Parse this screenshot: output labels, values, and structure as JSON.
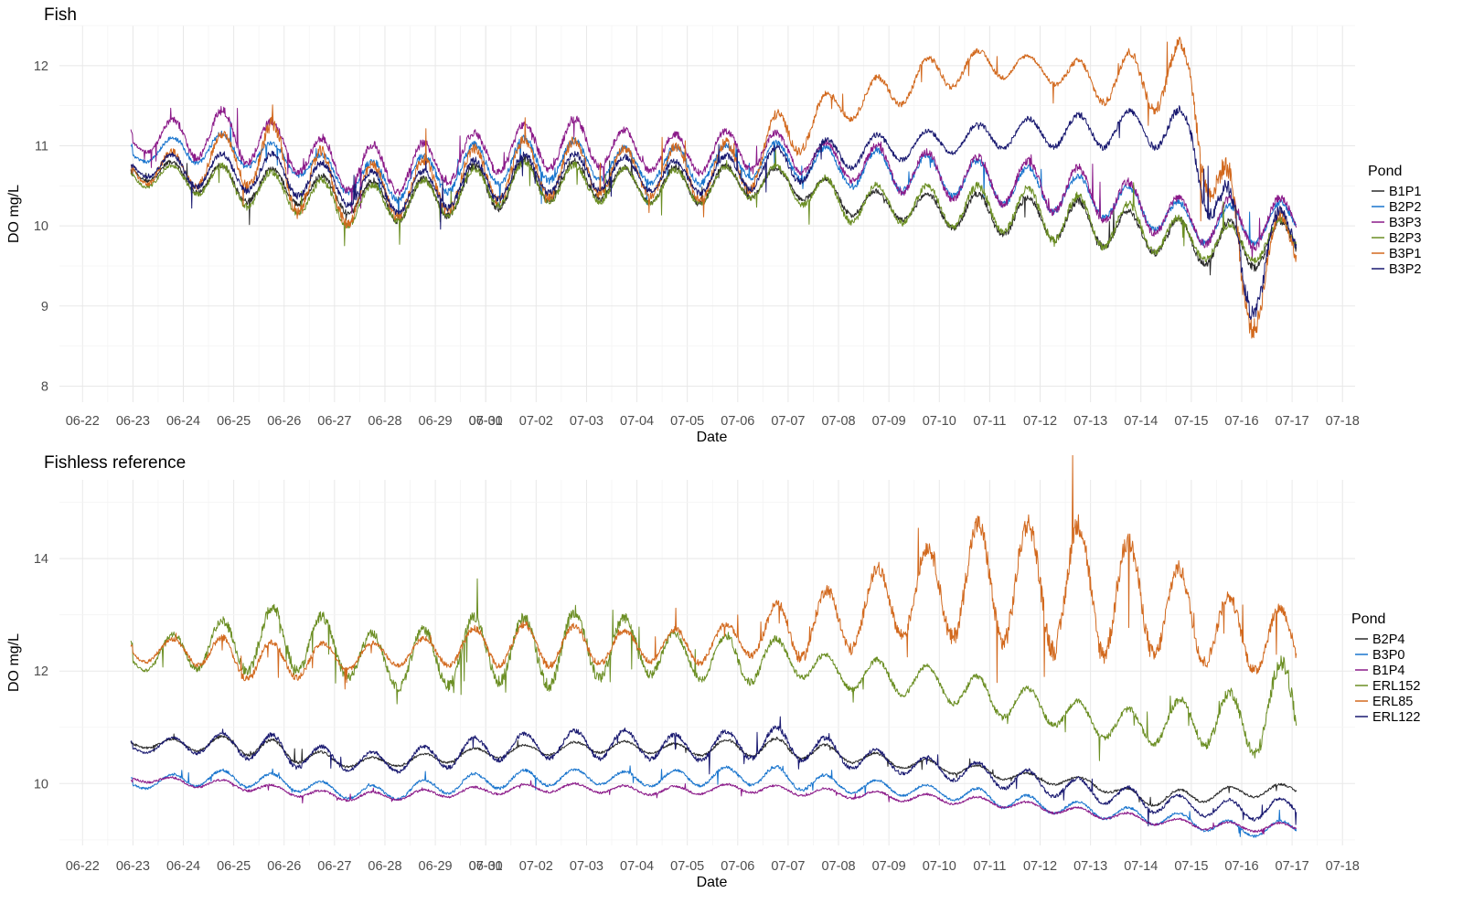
{
  "chart_data": [
    {
      "type": "line",
      "title": "Fish",
      "xlabel": "Date",
      "ylabel": "DO mg/L",
      "x_ticks": [
        "06-22",
        "06-23",
        "06-24",
        "06-25",
        "06-26",
        "06-27",
        "06-28",
        "06-29",
        "06-30",
        "07-01",
        "07-02",
        "07-03",
        "07-04",
        "07-05",
        "07-06",
        "07-07",
        "07-08",
        "07-09",
        "07-10",
        "07-11",
        "07-12",
        "07-13",
        "07-14",
        "07-15",
        "07-16",
        "07-17",
        "07-18"
      ],
      "xlim": [
        "06-21T13:00",
        "07-18T06:00"
      ],
      "ylim": [
        7.8,
        12.5
      ],
      "y_ticks": [
        8,
        9,
        10,
        11,
        12
      ],
      "grid": true,
      "legend": {
        "title": "Pond",
        "position": "right"
      },
      "x_start": "06-22T23:00",
      "x_end": "07-17T02:00",
      "series": [
        {
          "name": "B1P1",
          "color": "#2b2b2b",
          "daily_min": [
            10.6,
            10.45,
            10.3,
            10.3,
            10.2,
            10.05,
            10.1,
            10.2,
            10.3,
            10.35,
            10.3,
            10.25,
            10.35,
            10.4,
            10.15,
            10.1,
            10.0,
            9.9,
            9.85,
            9.75,
            9.7,
            9.55,
            9.45,
            9.55,
            9.65,
            9.8
          ],
          "daily_max": [
            10.8,
            10.8,
            10.75,
            10.7,
            10.6,
            10.55,
            10.6,
            10.8,
            10.85,
            10.8,
            10.7,
            10.75,
            10.75,
            10.7,
            10.55,
            10.4,
            10.4,
            10.4,
            10.35,
            10.3,
            10.15,
            10.05,
            10.05,
            10.05,
            10.2,
            10.1
          ]
        },
        {
          "name": "B2P2",
          "color": "#1874cd",
          "daily_min": [
            10.8,
            10.8,
            10.75,
            10.7,
            10.45,
            10.3,
            10.4,
            10.5,
            10.55,
            10.6,
            10.55,
            10.5,
            10.6,
            10.6,
            10.5,
            10.45,
            10.4,
            10.3,
            10.2,
            10.15,
            10.0,
            9.8,
            9.75,
            9.85,
            9.95,
            10.0
          ],
          "daily_max": [
            10.95,
            11.15,
            11.15,
            11.0,
            10.85,
            10.8,
            10.9,
            11.05,
            11.1,
            11.05,
            10.95,
            11.0,
            11.0,
            11.05,
            10.95,
            10.95,
            10.85,
            10.8,
            10.7,
            10.6,
            10.45,
            10.25,
            10.25,
            10.3,
            10.3,
            10.2
          ]
        },
        {
          "name": "B3P3",
          "color": "#8b1a89",
          "daily_min": [
            10.95,
            10.85,
            10.8,
            10.75,
            10.45,
            10.4,
            10.5,
            10.65,
            10.7,
            10.75,
            10.7,
            10.65,
            10.7,
            10.7,
            10.6,
            10.45,
            10.35,
            10.3,
            10.2,
            10.1,
            9.95,
            9.8,
            9.7,
            9.85,
            9.95,
            10.05
          ],
          "daily_max": [
            11.1,
            11.4,
            11.45,
            11.25,
            11.05,
            11.0,
            11.05,
            11.2,
            11.3,
            11.35,
            11.15,
            11.15,
            11.2,
            11.15,
            11.0,
            11.0,
            10.9,
            10.85,
            10.8,
            10.7,
            10.5,
            10.3,
            10.35,
            10.35,
            10.45,
            10.3
          ]
        },
        {
          "name": "B2P3",
          "color": "#6b8e23",
          "daily_min": [
            10.5,
            10.45,
            10.25,
            10.2,
            10.0,
            10.05,
            10.1,
            10.25,
            10.3,
            10.3,
            10.3,
            10.25,
            10.35,
            10.35,
            10.05,
            10.05,
            10.0,
            9.95,
            9.85,
            9.75,
            9.7,
            9.6,
            9.55,
            9.6,
            9.75,
            9.85
          ],
          "daily_max": [
            10.75,
            10.75,
            10.75,
            10.65,
            10.55,
            10.5,
            10.6,
            10.75,
            10.8,
            10.75,
            10.7,
            10.7,
            10.75,
            10.75,
            10.55,
            10.5,
            10.5,
            10.5,
            10.45,
            10.35,
            10.25,
            10.05,
            10.0,
            10.1,
            10.2,
            10.1
          ]
        },
        {
          "name": "B3P1",
          "color": "#d2691e",
          "daily_min": [
            10.55,
            10.45,
            10.6,
            10.2,
            10.0,
            10.1,
            10.15,
            10.3,
            10.35,
            10.4,
            10.4,
            10.3,
            10.35,
            10.8,
            11.3,
            11.45,
            11.7,
            11.85,
            11.85,
            11.55,
            11.5,
            11.3,
            8.5,
            9.35,
            9.35,
            9.8
          ],
          "daily_max": [
            10.85,
            10.95,
            11.2,
            11.3,
            10.8,
            10.75,
            10.85,
            11.0,
            11.1,
            11.05,
            10.95,
            11.0,
            11.05,
            11.5,
            11.7,
            11.9,
            12.15,
            12.2,
            12.1,
            12.05,
            12.2,
            12.3,
            10.15,
            10.15,
            10.25,
            10.1
          ]
        },
        {
          "name": "B3P2",
          "color": "#191970",
          "daily_min": [
            10.65,
            10.5,
            10.45,
            10.4,
            10.3,
            10.15,
            10.2,
            10.3,
            10.4,
            10.45,
            10.45,
            10.4,
            10.45,
            10.5,
            10.7,
            10.8,
            10.9,
            10.95,
            11.0,
            10.95,
            11.05,
            10.8,
            8.7,
            9.55,
            9.6,
            9.9
          ],
          "daily_max": [
            10.85,
            10.9,
            10.9,
            10.9,
            10.75,
            10.65,
            10.7,
            10.85,
            10.9,
            10.9,
            10.85,
            10.8,
            10.9,
            11.0,
            11.1,
            11.15,
            11.2,
            11.3,
            11.35,
            11.4,
            11.45,
            11.45,
            10.15,
            10.2,
            10.3,
            10.1
          ]
        }
      ]
    },
    {
      "type": "line",
      "title": "Fishless reference",
      "xlabel": "Date",
      "ylabel": "DO mg/L",
      "x_ticks": [
        "06-22",
        "06-23",
        "06-24",
        "06-25",
        "06-26",
        "06-27",
        "06-28",
        "06-29",
        "06-30",
        "07-01",
        "07-02",
        "07-03",
        "07-04",
        "07-05",
        "07-06",
        "07-07",
        "07-08",
        "07-09",
        "07-10",
        "07-11",
        "07-12",
        "07-13",
        "07-14",
        "07-15",
        "07-16",
        "07-17",
        "07-18"
      ],
      "xlim": [
        "06-21T13:00",
        "07-18T06:00"
      ],
      "ylim": [
        8.9,
        15.4
      ],
      "y_ticks": [
        10,
        12,
        14
      ],
      "grid": true,
      "legend": {
        "title": "Pond",
        "position": "right"
      },
      "x_start": "06-22T23:00",
      "x_end": "07-17T02:00",
      "series": [
        {
          "name": "B2P4",
          "color": "#2b2b2b",
          "daily_min": [
            10.65,
            10.6,
            10.55,
            10.4,
            10.3,
            10.3,
            10.35,
            10.45,
            10.5,
            10.55,
            10.55,
            10.5,
            10.5,
            10.45,
            10.4,
            10.3,
            10.2,
            10.1,
            10.0,
            9.95,
            9.6,
            9.65,
            9.75,
            9.8,
            9.85,
            9.9
          ],
          "daily_max": [
            10.75,
            10.8,
            10.85,
            10.75,
            10.5,
            10.45,
            10.55,
            10.65,
            10.7,
            10.75,
            10.75,
            10.7,
            10.8,
            10.8,
            10.65,
            10.5,
            10.4,
            10.3,
            10.15,
            10.1,
            9.85,
            9.9,
            9.95,
            10.0,
            10.05,
            10.0
          ]
        },
        {
          "name": "B3P0",
          "color": "#1874cd",
          "daily_min": [
            9.9,
            9.95,
            9.95,
            9.9,
            9.75,
            9.7,
            9.8,
            9.9,
            9.95,
            10.0,
            9.95,
            9.95,
            10.0,
            9.9,
            9.85,
            9.8,
            9.75,
            9.6,
            9.5,
            9.4,
            9.3,
            9.2,
            9.05,
            9.1,
            9.15,
            9.2
          ],
          "daily_max": [
            10.05,
            10.2,
            10.25,
            10.15,
            10.0,
            9.95,
            10.1,
            10.2,
            10.25,
            10.25,
            10.2,
            10.25,
            10.3,
            10.3,
            10.1,
            10.05,
            9.95,
            9.9,
            9.75,
            9.65,
            9.55,
            9.45,
            9.3,
            9.35,
            9.35,
            9.3
          ]
        },
        {
          "name": "B1P4",
          "color": "#8b1a89",
          "daily_min": [
            10.05,
            9.95,
            9.9,
            9.8,
            9.7,
            9.7,
            9.75,
            9.8,
            9.85,
            9.85,
            9.8,
            9.8,
            9.85,
            9.8,
            9.75,
            9.7,
            9.65,
            9.6,
            9.5,
            9.4,
            9.3,
            9.2,
            9.15,
            9.15,
            9.2,
            9.25
          ],
          "daily_max": [
            10.15,
            10.1,
            10.05,
            9.95,
            9.85,
            9.85,
            9.9,
            9.95,
            10.0,
            10.0,
            9.95,
            9.95,
            10.0,
            9.95,
            9.9,
            9.85,
            9.8,
            9.75,
            9.65,
            9.55,
            9.45,
            9.35,
            9.3,
            9.3,
            9.35,
            9.35
          ]
        },
        {
          "name": "ERL152",
          "color": "#6b8e23",
          "daily_min": [
            12.0,
            12.05,
            12.0,
            12.0,
            11.95,
            11.7,
            11.7,
            11.85,
            11.7,
            11.85,
            11.95,
            11.9,
            11.75,
            11.95,
            11.7,
            11.6,
            11.5,
            11.2,
            11.1,
            10.85,
            10.7,
            10.75,
            10.5,
            10.6,
            10.6,
            10.8
          ],
          "daily_max": [
            12.3,
            12.75,
            12.95,
            13.2,
            12.9,
            12.6,
            12.8,
            13.0,
            12.95,
            13.1,
            12.9,
            12.6,
            12.65,
            12.55,
            12.2,
            12.2,
            12.05,
            11.85,
            11.65,
            11.4,
            11.3,
            11.55,
            11.65,
            12.3,
            11.3,
            11.2
          ]
        },
        {
          "name": "ERL85",
          "color": "#d2691e",
          "daily_min": [
            12.15,
            12.2,
            11.85,
            11.85,
            12.0,
            12.1,
            12.1,
            12.1,
            12.1,
            12.1,
            12.2,
            12.1,
            12.3,
            12.2,
            12.3,
            12.65,
            12.6,
            12.55,
            12.4,
            12.3,
            12.3,
            12.2,
            12.0,
            12.0,
            11.9,
            11.8
          ],
          "daily_max": [
            12.45,
            12.6,
            12.6,
            12.5,
            12.5,
            12.5,
            12.6,
            12.8,
            12.85,
            12.8,
            12.7,
            12.75,
            12.85,
            13.3,
            13.5,
            13.9,
            14.3,
            14.7,
            14.6,
            14.6,
            14.2,
            13.7,
            13.2,
            13.1,
            12.7,
            12.4
          ]
        },
        {
          "name": "ERL122",
          "color": "#191970",
          "daily_min": [
            10.55,
            10.55,
            10.5,
            10.3,
            10.25,
            10.2,
            10.25,
            10.4,
            10.45,
            10.45,
            10.45,
            10.4,
            10.45,
            10.45,
            10.3,
            10.2,
            10.1,
            9.95,
            9.8,
            9.7,
            9.5,
            9.45,
            9.35,
            9.4,
            9.45,
            9.5
          ],
          "daily_max": [
            10.7,
            10.85,
            10.9,
            10.85,
            10.6,
            10.55,
            10.7,
            10.85,
            10.9,
            10.95,
            10.95,
            10.85,
            10.95,
            11.0,
            10.75,
            10.55,
            10.45,
            10.35,
            10.2,
            10.05,
            9.9,
            9.75,
            9.7,
            9.75,
            9.8,
            9.7
          ]
        }
      ]
    }
  ]
}
